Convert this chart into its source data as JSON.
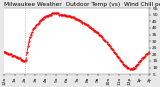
{
  "title": "Milwaukee Weather  Outdoor Temp (vs)  Wind Chill per Minute (Last 24 Hours)",
  "line_color": "#ff0000",
  "line_style": "--",
  "line_width": 0.7,
  "marker": ".",
  "marker_size": 1.2,
  "bg_color": "#e8e8e8",
  "plot_bg_color": "#ffffff",
  "ylim": [
    5,
    55
  ],
  "yticks": [
    5,
    10,
    15,
    20,
    25,
    30,
    35,
    40,
    45,
    50,
    55
  ],
  "vline_x": 20,
  "vline_color": "#999999",
  "vline_style": ":",
  "x_values": [
    0,
    1,
    2,
    3,
    4,
    5,
    6,
    7,
    8,
    9,
    10,
    11,
    12,
    13,
    14,
    15,
    16,
    17,
    18,
    19,
    20,
    21,
    22,
    23,
    24,
    25,
    26,
    27,
    28,
    29,
    30,
    31,
    32,
    33,
    34,
    35,
    36,
    37,
    38,
    39,
    40,
    41,
    42,
    43,
    44,
    45,
    46,
    47,
    48,
    49,
    50,
    51,
    52,
    53,
    54,
    55,
    56,
    57,
    58,
    59,
    60,
    61,
    62,
    63,
    64,
    65,
    66,
    67,
    68,
    69,
    70,
    71,
    72,
    73,
    74,
    75,
    76,
    77,
    78,
    79,
    80,
    81,
    82,
    83,
    84,
    85,
    86,
    87,
    88,
    89,
    90,
    91,
    92,
    93,
    94,
    95,
    96,
    97,
    98,
    99,
    100,
    101,
    102,
    103,
    104,
    105,
    106,
    107,
    108,
    109,
    110,
    111,
    112,
    113,
    114,
    115,
    116,
    117,
    118,
    119,
    120,
    121,
    122,
    123,
    124,
    125,
    126,
    127,
    128,
    129,
    130,
    131,
    132,
    133,
    134,
    135,
    136,
    137,
    138,
    139
  ],
  "y_values": [
    22,
    22,
    21,
    21,
    20,
    20,
    20,
    20,
    19,
    19,
    19,
    18,
    18,
    17,
    17,
    17,
    16,
    16,
    15,
    15,
    15,
    16,
    22,
    26,
    30,
    33,
    35,
    37,
    39,
    40,
    41,
    42,
    43,
    44,
    45,
    46,
    47,
    47,
    48,
    48,
    49,
    49,
    49,
    50,
    50,
    50,
    51,
    51,
    51,
    51,
    51,
    51,
    51,
    50,
    50,
    50,
    50,
    50,
    50,
    49,
    49,
    49,
    49,
    49,
    48,
    48,
    48,
    48,
    47,
    47,
    47,
    46,
    46,
    45,
    45,
    44,
    44,
    43,
    43,
    42,
    42,
    41,
    41,
    40,
    39,
    39,
    38,
    38,
    37,
    37,
    36,
    35,
    35,
    34,
    33,
    32,
    31,
    30,
    29,
    28,
    27,
    26,
    25,
    24,
    23,
    22,
    21,
    20,
    19,
    18,
    17,
    16,
    15,
    14,
    13,
    12,
    11,
    11,
    10,
    10,
    9,
    9,
    9,
    9,
    10,
    10,
    11,
    12,
    13,
    14,
    15,
    16,
    17,
    17,
    18,
    19,
    20,
    20,
    21,
    22
  ],
  "title_fontsize": 4.2,
  "tick_fontsize": 3.2,
  "xtick_positions": [
    0,
    10,
    20,
    30,
    40,
    50,
    60,
    70,
    80,
    90,
    100,
    110,
    120,
    130,
    139
  ],
  "xtick_labels": [
    "12a",
    "1a",
    "2a",
    "3a",
    "4a",
    "5a",
    "6a",
    "7a",
    "8a",
    "9a",
    "10a",
    "11a",
    "12p",
    "1p",
    "2p"
  ],
  "xlim": [
    0,
    139
  ]
}
